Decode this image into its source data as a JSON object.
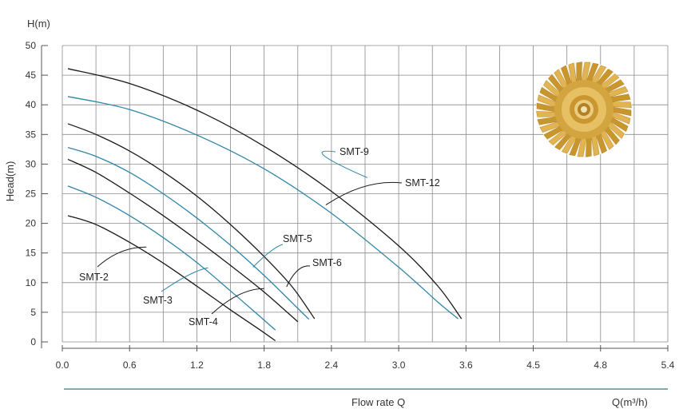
{
  "chart_data": {
    "type": "line",
    "ylabel": "Head(m)",
    "y_unit": "H(m)",
    "xlabel": "Flow rate Q",
    "x_unit": "Q(m³/h)",
    "xlim": [
      0,
      5.4
    ],
    "ylim": [
      0,
      50
    ],
    "x_ticks": [
      "0.0",
      "0.6",
      "1.2",
      "1.8",
      "2.4",
      "3.0",
      "3.6",
      "4.5",
      "4.8",
      "5.4"
    ],
    "y_ticks": [
      "0",
      "5",
      "10",
      "15",
      "20",
      "25",
      "30",
      "35",
      "40",
      "45",
      "50"
    ],
    "grid": true,
    "series": [
      {
        "name": "SMT-2",
        "color": "#1a1a1a",
        "x": [
          0.05,
          0.3,
          0.6,
          0.9,
          1.2,
          1.5,
          1.75,
          1.9
        ],
        "y": [
          21.3,
          19.8,
          16.8,
          13.3,
          9.4,
          5.4,
          2.2,
          0.2
        ]
      },
      {
        "name": "SMT-3",
        "color": "#2f86a8",
        "x": [
          0.05,
          0.3,
          0.6,
          0.9,
          1.2,
          1.5,
          1.75,
          1.9
        ],
        "y": [
          26.3,
          24.4,
          21.3,
          17.6,
          13.4,
          8.6,
          4.5,
          2.0
        ]
      },
      {
        "name": "SMT-4",
        "color": "#1a1a1a",
        "x": [
          0.05,
          0.3,
          0.6,
          0.9,
          1.2,
          1.5,
          1.8,
          2.1
        ],
        "y": [
          30.8,
          28.6,
          25.1,
          21.3,
          17.2,
          12.9,
          8.4,
          3.4
        ]
      },
      {
        "name": "SMT-5",
        "color": "#2f86a8",
        "x": [
          0.05,
          0.3,
          0.6,
          0.9,
          1.2,
          1.5,
          1.8,
          2.05,
          2.2
        ],
        "y": [
          32.8,
          31.3,
          28.6,
          25.0,
          20.9,
          16.3,
          11.2,
          6.6,
          3.8
        ]
      },
      {
        "name": "SMT-6",
        "color": "#1a1a1a",
        "x": [
          0.05,
          0.3,
          0.6,
          0.9,
          1.2,
          1.5,
          1.8,
          2.05,
          2.25
        ],
        "y": [
          36.8,
          35.0,
          32.2,
          28.7,
          24.6,
          19.8,
          14.4,
          9.3,
          3.9
        ]
      },
      {
        "name": "SMT-9",
        "color": "#2f86a8",
        "x": [
          0.05,
          0.6,
          1.2,
          1.8,
          2.4,
          3.0,
          3.35,
          3.53
        ],
        "y": [
          41.4,
          39.2,
          34.9,
          29.2,
          21.7,
          12.6,
          6.7,
          3.9
        ]
      },
      {
        "name": "SMT-12",
        "color": "#1a1a1a",
        "x": [
          0.05,
          0.6,
          1.2,
          1.8,
          2.4,
          3.0,
          3.35,
          3.56
        ],
        "y": [
          46.1,
          43.6,
          39.1,
          33.0,
          25.4,
          16.2,
          9.4,
          3.9
        ]
      }
    ]
  }
}
